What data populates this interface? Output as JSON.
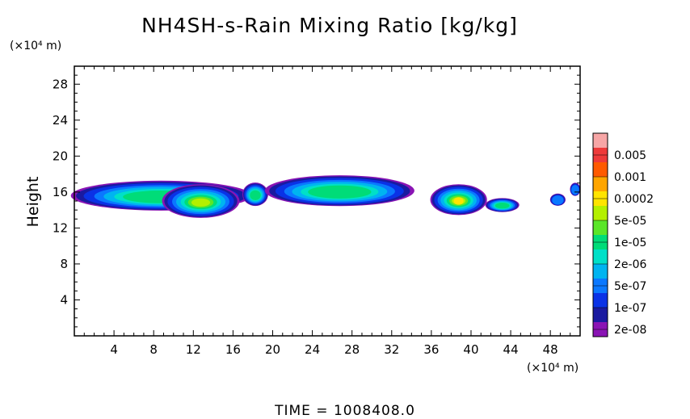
{
  "chart_data": {
    "type": "heatmap",
    "title": "NH4SH-s-Rain Mixing Ratio [kg/kg]",
    "ylabel": "Height",
    "xunit": "(×10⁴ m)",
    "yunit": "(×10⁴ m)",
    "xlim": [
      0,
      51
    ],
    "ylim": [
      0,
      30
    ],
    "xticks": [
      4,
      8,
      12,
      16,
      20,
      24,
      28,
      32,
      36,
      40,
      44,
      48
    ],
    "yticks": [
      4,
      8,
      12,
      16,
      20,
      24,
      28
    ],
    "grid": false,
    "legend": "right",
    "colorbar": {
      "labels": [
        "0.005",
        "0.001",
        "0.0002",
        "5e-05",
        "1e-05",
        "2e-06",
        "5e-07",
        "1e-07",
        "2e-08"
      ],
      "colors": [
        "#f7a6a6",
        "#ee3a3a",
        "#ff5a00",
        "#ffa500",
        "#ffe400",
        "#b4f000",
        "#5ae628",
        "#00dc78",
        "#00e0c8",
        "#00b4f0",
        "#0a78ff",
        "#0a32e6",
        "#1a1aa0",
        "#8a14b4"
      ]
    },
    "clouds": [
      {
        "x": [
          0,
          17.5
        ],
        "y": [
          14.0,
          17.2
        ],
        "peak": 0.62
      },
      {
        "x": [
          9.0,
          16.5
        ],
        "y": [
          13.2,
          16.8
        ],
        "peak": 0.78
      },
      {
        "x": [
          17.0,
          19.5
        ],
        "y": [
          14.5,
          17.0
        ],
        "peak": 0.55
      },
      {
        "x": [
          19.5,
          34.0
        ],
        "y": [
          14.5,
          17.8
        ],
        "peak": 0.58
      },
      {
        "x": [
          36.0,
          41.5
        ],
        "y": [
          13.5,
          16.8
        ],
        "peak": 0.85
      },
      {
        "x": [
          41.5,
          44.8
        ],
        "y": [
          13.8,
          15.3
        ],
        "peak": 0.6
      },
      {
        "x": [
          48.0,
          49.5
        ],
        "y": [
          14.5,
          15.8
        ],
        "peak": 0.32
      },
      {
        "x": [
          50.0,
          51.0
        ],
        "y": [
          15.6,
          17.0
        ],
        "peak": 0.3
      }
    ]
  },
  "footer": {
    "time_label": "TIME = 1008408.0"
  }
}
